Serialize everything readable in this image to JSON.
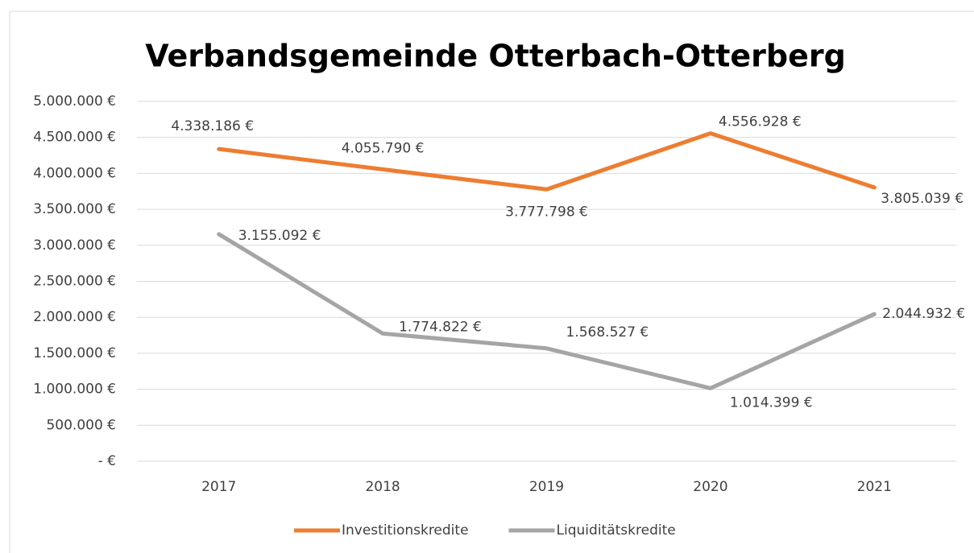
{
  "chart_data": {
    "type": "line",
    "title": "Verbandsgemeinde Otterbach-Otterberg",
    "categories": [
      "2017",
      "2018",
      "2019",
      "2020",
      "2021"
    ],
    "series": [
      {
        "name": "Investitionskredite",
        "color": "#ed7d31",
        "values": [
          4338186,
          4055790,
          3777798,
          4556928,
          3805039
        ],
        "value_labels": [
          "4.338.186 €",
          "4.055.790 €",
          "3.777.798 €",
          "4.556.928 €",
          "3.805.039 €"
        ]
      },
      {
        "name": "Liquiditätskredite",
        "color": "#a5a5a5",
        "values": [
          3155092,
          1774822,
          1568527,
          1014399,
          2044932
        ],
        "value_labels": [
          "3.155.092 €",
          "1.774.822 €",
          "1.568.527 €",
          "1.014.399 €",
          "2.044.932 €"
        ]
      }
    ],
    "ylim": [
      0,
      5000000
    ],
    "yticks": [
      {
        "value": 0,
        "label": "- €"
      },
      {
        "value": 500000,
        "label": "500.000 €"
      },
      {
        "value": 1000000,
        "label": "1.000.000 €"
      },
      {
        "value": 1500000,
        "label": "1.500.000 €"
      },
      {
        "value": 2000000,
        "label": "2.000.000 €"
      },
      {
        "value": 2500000,
        "label": "2.500.000 €"
      },
      {
        "value": 3000000,
        "label": "3.000.000 €"
      },
      {
        "value": 3500000,
        "label": "3.500.000 €"
      },
      {
        "value": 4000000,
        "label": "4.000.000 €"
      },
      {
        "value": 4500000,
        "label": "4.500.000 €"
      },
      {
        "value": 5000000,
        "label": "5.000.000 €"
      }
    ],
    "grid": true,
    "legend": "bottom"
  }
}
